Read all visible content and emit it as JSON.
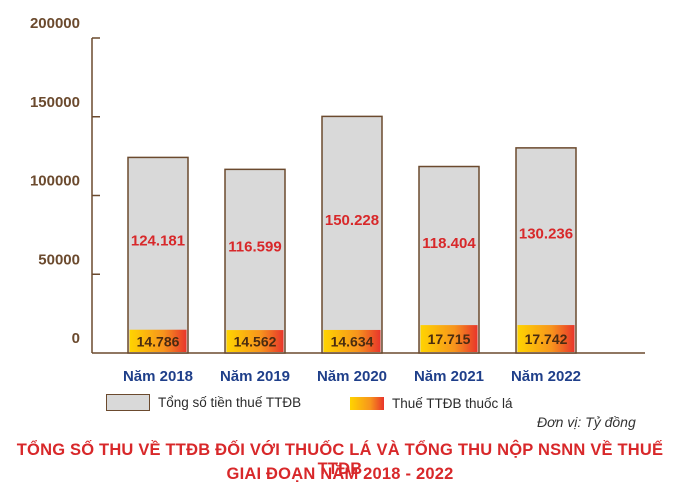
{
  "chart_data": {
    "type": "bar",
    "categories": [
      "Năm 2018",
      "Năm 2019",
      "Năm 2020",
      "Năm 2021",
      "Năm 2022"
    ],
    "series": [
      {
        "name": "Tổng số tiền thuế TTĐB",
        "values": [
          124181,
          116599,
          150228,
          118404,
          130236
        ],
        "labels": [
          "124.181",
          "116.599",
          "150.228",
          "118.404",
          "130.236"
        ],
        "color": "#d9d9d9"
      },
      {
        "name": "Thuế TTĐB thuốc lá",
        "values": [
          14786,
          14562,
          14634,
          17715,
          17742
        ],
        "labels": [
          "14.786",
          "14.562",
          "14.634",
          "17.715",
          "17.742"
        ],
        "color": "#f7941d"
      }
    ],
    "y_ticks": [
      "0",
      "50000",
      "100000",
      "150000",
      "200000"
    ],
    "ylim": [
      0,
      200000
    ],
    "grid": false,
    "legend_position": "bottom",
    "unit_note": "Đơn vị: Tỷ đồng",
    "title_line1": "TỔNG SỐ THU VỀ TTĐB ĐỐI VỚI THUỐC LÁ VÀ TỔNG THU NỘP NSNN VỀ THUẾ TTĐB",
    "title_line2": "GIAI ĐOẠN NĂM 2018 - 2022"
  },
  "colors": {
    "axis": "#6b4a2e",
    "bar_outline": "#6b4a2e",
    "value_label": "#d8282a",
    "category_label": "#1f3f8a",
    "title": "#d8282a"
  }
}
